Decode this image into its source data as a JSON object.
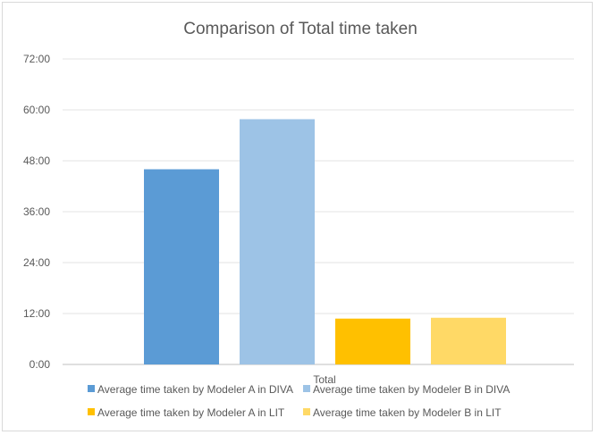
{
  "chart_data": {
    "type": "bar",
    "title": "Comparison of Total time taken",
    "categories": [
      "Total"
    ],
    "yticks": [
      "0:00",
      "12:00",
      "24:00",
      "36:00",
      "48:00",
      "60:00",
      "72:00"
    ],
    "ylim_minutes": [
      0,
      72
    ],
    "grid": true,
    "legend_position": "bottom",
    "series": [
      {
        "name": "Average time taken by Modeler A in DIVA",
        "value_minutes": 46,
        "color": "#5b9bd5"
      },
      {
        "name": "Average time taken by Modeler B in DIVA",
        "value_minutes": 57.8,
        "color": "#9dc3e6"
      },
      {
        "name": "Average time taken by Modeler A in LIT",
        "value_minutes": 10.8,
        "color": "#ffc000"
      },
      {
        "name": "Average time taken by Modeler B in LIT",
        "value_minutes": 11,
        "color": "#ffd966"
      }
    ]
  }
}
